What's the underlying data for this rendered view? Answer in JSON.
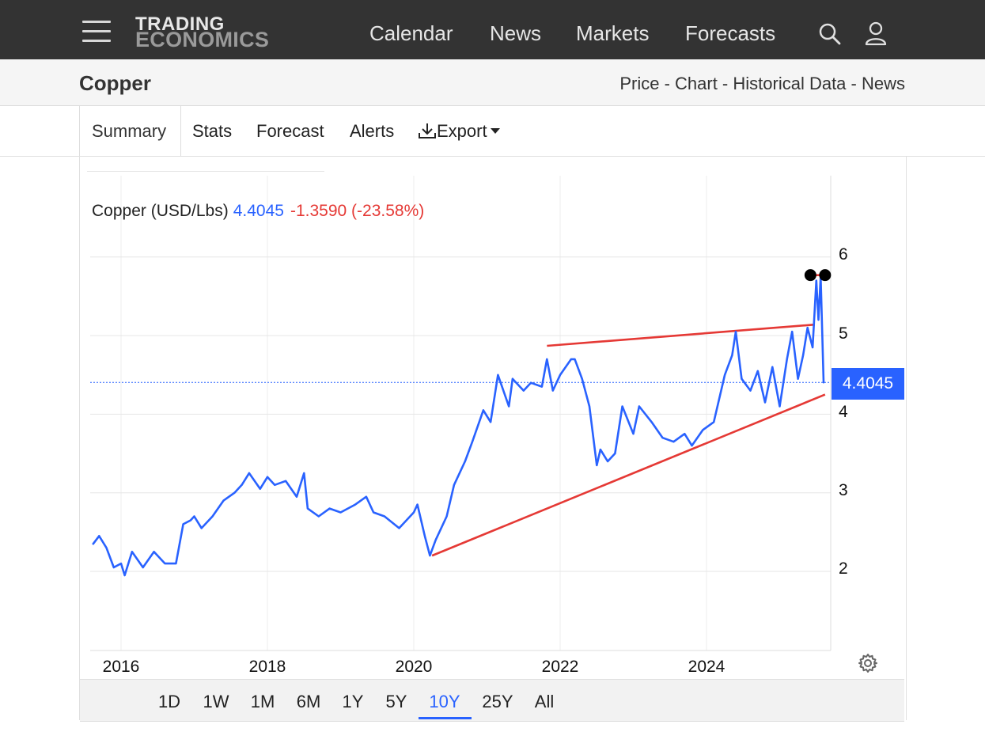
{
  "brand": {
    "line1": "TRADING",
    "line2": "ECONOMICS"
  },
  "nav": {
    "calendar": "Calendar",
    "news": "News",
    "markets": "Markets",
    "forecasts": "Forecasts"
  },
  "page": {
    "title": "Copper",
    "crumb_price": "Price",
    "crumb_chart": "Chart",
    "crumb_hist": "Historical Data",
    "crumb_news": "News",
    "sep": " - "
  },
  "tabs": {
    "summary": "Summary",
    "stats": "Stats",
    "forecast": "Forecast",
    "alerts": "Alerts",
    "export": "Export"
  },
  "search": {
    "placeholder": "Search..."
  },
  "legend": {
    "name": "Copper (USD/Lbs)",
    "price": "4.4045",
    "change": "-1.3590 (-23.58%)"
  },
  "price_tag": "4.4045",
  "ranges": {
    "r1": "1D",
    "r2": "1W",
    "r3": "1M",
    "r4": "6M",
    "r5": "1Y",
    "r6": "5Y",
    "r7": "10Y",
    "r8": "25Y",
    "r9": "All",
    "active": "10Y"
  },
  "colors": {
    "line": "#2962ff",
    "trend": "#e53935",
    "accent": "#2962ff"
  },
  "chart_data": {
    "type": "line",
    "title": "",
    "xlabel": "",
    "ylabel": "",
    "x_ticks": [
      "2016",
      "2018",
      "2020",
      "2022",
      "2024"
    ],
    "y_ticks": [
      "2",
      "3",
      "4",
      "5",
      "6"
    ],
    "ylim": [
      1,
      6.5
    ],
    "xlim": [
      2015.6,
      2025.65
    ],
    "grid": true,
    "last_value": 4.4045,
    "series": [
      {
        "x": [
          2015.62,
          2015.7,
          2015.8,
          2015.9,
          2016.0,
          2016.05,
          2016.15,
          2016.3,
          2016.45,
          2016.6,
          2016.75,
          2016.85,
          2016.95,
          2017.0,
          2017.1,
          2017.25,
          2017.4,
          2017.55,
          2017.65,
          2017.75,
          2017.9,
          2018.0,
          2018.1,
          2018.25,
          2018.4,
          2018.5,
          2018.55,
          2018.7,
          2018.85,
          2019.0,
          2019.2,
          2019.35,
          2019.45,
          2019.6,
          2019.8,
          2020.0,
          2020.05,
          2020.15,
          2020.22,
          2020.3,
          2020.45,
          2020.55,
          2020.7,
          2020.8,
          2020.95,
          2021.05,
          2021.15,
          2021.3,
          2021.35,
          2021.5,
          2021.6,
          2021.75,
          2021.82,
          2021.9,
          2022.0,
          2022.15,
          2022.2,
          2022.3,
          2022.4,
          2022.5,
          2022.55,
          2022.65,
          2022.75,
          2022.85,
          2023.0,
          2023.08,
          2023.25,
          2023.4,
          2023.55,
          2023.7,
          2023.8,
          2023.95,
          2024.1,
          2024.25,
          2024.35,
          2024.4,
          2024.48,
          2024.6,
          2024.7,
          2024.8,
          2024.9,
          2025.0,
          2025.1,
          2025.17,
          2025.25,
          2025.32,
          2025.38,
          2025.45,
          2025.5,
          2025.53,
          2025.56,
          2025.6
        ],
        "values": [
          2.35,
          2.45,
          2.3,
          2.05,
          2.1,
          1.95,
          2.25,
          2.05,
          2.25,
          2.1,
          2.1,
          2.6,
          2.65,
          2.7,
          2.55,
          2.7,
          2.9,
          3.0,
          3.1,
          3.25,
          3.05,
          3.2,
          3.1,
          3.15,
          2.95,
          3.25,
          2.8,
          2.7,
          2.8,
          2.75,
          2.85,
          2.95,
          2.75,
          2.7,
          2.55,
          2.75,
          2.85,
          2.45,
          2.2,
          2.4,
          2.7,
          3.1,
          3.4,
          3.65,
          4.05,
          3.9,
          4.5,
          4.1,
          4.45,
          4.3,
          4.4,
          4.35,
          4.7,
          4.3,
          4.5,
          4.7,
          4.7,
          4.45,
          4.1,
          3.35,
          3.55,
          3.4,
          3.5,
          4.1,
          3.75,
          4.1,
          3.9,
          3.7,
          3.65,
          3.75,
          3.6,
          3.8,
          3.9,
          4.5,
          4.75,
          5.05,
          4.45,
          4.3,
          4.55,
          4.15,
          4.6,
          4.1,
          4.7,
          5.05,
          4.45,
          4.75,
          5.1,
          4.85,
          5.7,
          5.2,
          5.75,
          4.4045
        ]
      }
    ],
    "trendlines": [
      {
        "from": [
          2020.25,
          2.2
        ],
        "to": [
          2025.62,
          4.25
        ]
      },
      {
        "from": [
          2021.82,
          4.87
        ],
        "to": [
          2025.48,
          5.14
        ]
      },
      {
        "from": [
          2025.42,
          5.77
        ],
        "to": [
          2025.62,
          5.77
        ]
      }
    ]
  }
}
